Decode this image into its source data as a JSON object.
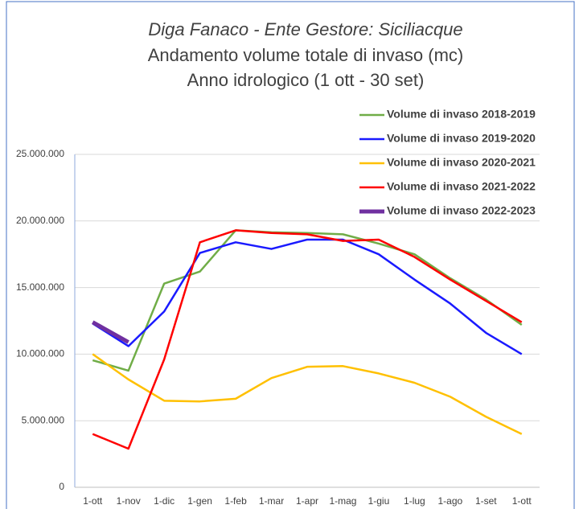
{
  "chart_data": {
    "type": "line",
    "title": "Diga Fanaco - Ente Gestore: Siciliacque",
    "subtitle": "Andamento volume totale di invaso (mc)",
    "subtitle2": "Anno idrologico (1 ott - 30 set)",
    "categories": [
      "1-ott",
      "1-nov",
      "1-dic",
      "1-gen",
      "1-feb",
      "1-mar",
      "1-apr",
      "1-mag",
      "1-giu",
      "1-lug",
      "1-ago",
      "1-set",
      "1-ott"
    ],
    "series": [
      {
        "name": "Volume di invaso 2018-2019",
        "color": "#70ad47",
        "values": [
          9540000,
          8760000,
          15300000,
          16200000,
          19300000,
          19150000,
          19100000,
          19000000,
          18300000,
          17500000,
          15700000,
          14100000,
          12200000
        ]
      },
      {
        "name": "Volume di invaso 2019-2020",
        "color": "#1a1aff",
        "values": [
          12300000,
          10600000,
          13200000,
          17600000,
          18400000,
          17900000,
          18600000,
          18600000,
          17500000,
          15600000,
          13800000,
          11600000,
          10000000
        ]
      },
      {
        "name": "Volume di invaso 2020-2021",
        "color": "#ffc000",
        "values": [
          10000000,
          8100000,
          6500000,
          6450000,
          6650000,
          8200000,
          9050000,
          9100000,
          8550000,
          7850000,
          6800000,
          5300000,
          4000000
        ]
      },
      {
        "name": "Volume di invaso 2021-2022",
        "color": "#ff0000",
        "values": [
          4000000,
          2900000,
          9600000,
          18400000,
          19300000,
          19100000,
          19000000,
          18500000,
          18600000,
          17300000,
          15600000,
          14000000,
          12400000
        ]
      },
      {
        "name": "Volume di invaso 2022-2023",
        "color": "#7030a0",
        "values": [
          12400000,
          10900000,
          null,
          null,
          null,
          null,
          null,
          null,
          null,
          null,
          null,
          null,
          null
        ]
      }
    ],
    "ylim": [
      0,
      25000000
    ],
    "yticks": [
      0,
      {
        "value": 5000000,
        "label": "5.000.000"
      },
      {
        "value": 10000000,
        "label": "10.000.000"
      },
      {
        "value": 15000000,
        "label": "15.000.000"
      },
      {
        "value": 20000000,
        "label": "20.000.000"
      },
      {
        "value": 25000000,
        "label": "25.000.000"
      }
    ],
    "grid": true,
    "legend": "upper right"
  }
}
